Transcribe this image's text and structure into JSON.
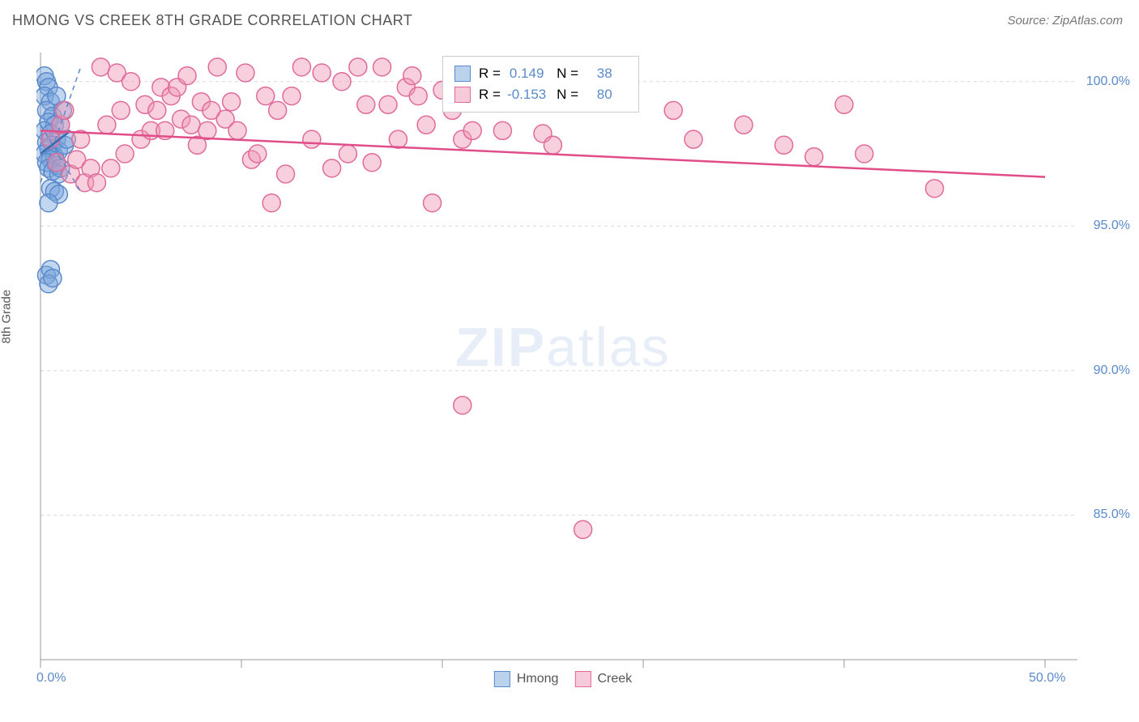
{
  "title": "HMONG VS CREEK 8TH GRADE CORRELATION CHART",
  "source": "Source: ZipAtlas.com",
  "watermark_bold": "ZIP",
  "watermark_light": "atlas",
  "y_axis_label": "8th Grade",
  "chart": {
    "type": "scatter",
    "xlim": [
      0,
      50
    ],
    "ylim": [
      80,
      101
    ],
    "x_ticks": [
      0,
      10,
      20,
      30,
      40,
      50
    ],
    "y_ticks": [
      85,
      90,
      95,
      100
    ],
    "y_tick_labels": [
      "85.0%",
      "90.0%",
      "95.0%",
      "100.0%"
    ],
    "x_tick_labels_shown": [
      "0.0%",
      "50.0%"
    ],
    "grid_color": "#d8d8d8",
    "axis_line_color": "#999999",
    "background_color": "#ffffff",
    "marker_radius": 11,
    "marker_stroke_width": 1.5,
    "trend_line_width": 2.5,
    "trend_dash_width": 1.5
  },
  "series": [
    {
      "name": "Hmong",
      "fill_color": "rgba(120,165,220,0.45)",
      "stroke_color": "#5a8acb",
      "trend_color": "#3a6aab",
      "R": "0.149",
      "N": "38",
      "trend": {
        "x1": 0,
        "y1": 97.5,
        "x2": 1.5,
        "y2": 98.3
      },
      "dashed_ci": [
        {
          "x1": 0,
          "y1": 96.5,
          "x2": 2,
          "y2": 100.5
        },
        {
          "x1": 0,
          "y1": 98.5,
          "x2": 2,
          "y2": 96.2
        }
      ],
      "points": [
        [
          0.2,
          100.2
        ],
        [
          0.3,
          100.0
        ],
        [
          0.4,
          99.8
        ],
        [
          0.2,
          99.5
        ],
        [
          0.5,
          99.3
        ],
        [
          0.3,
          99.0
        ],
        [
          0.6,
          98.8
        ],
        [
          0.4,
          98.6
        ],
        [
          0.7,
          98.5
        ],
        [
          0.2,
          98.3
        ],
        [
          0.5,
          98.2
        ],
        [
          0.8,
          98.0
        ],
        [
          0.3,
          97.9
        ],
        [
          0.6,
          97.8
        ],
        [
          0.4,
          97.7
        ],
        [
          0.9,
          97.6
        ],
        [
          0.2,
          97.5
        ],
        [
          0.7,
          97.4
        ],
        [
          0.5,
          97.3
        ],
        [
          0.3,
          97.2
        ],
        [
          0.8,
          97.1
        ],
        [
          0.4,
          97.0
        ],
        [
          0.6,
          96.9
        ],
        [
          0.9,
          96.8
        ],
        [
          1.1,
          99.0
        ],
        [
          1.2,
          97.8
        ],
        [
          0.5,
          96.3
        ],
        [
          0.7,
          96.2
        ],
        [
          0.9,
          96.1
        ],
        [
          0.4,
          95.8
        ],
        [
          1.0,
          98.5
        ],
        [
          1.3,
          98.0
        ],
        [
          0.3,
          93.3
        ],
        [
          0.5,
          93.5
        ],
        [
          0.4,
          93.0
        ],
        [
          0.6,
          93.2
        ],
        [
          0.8,
          99.5
        ],
        [
          1.0,
          97.0
        ]
      ]
    },
    {
      "name": "Creek",
      "fill_color": "rgba(240,150,180,0.45)",
      "stroke_color": "#e06a9a",
      "trend_color": "#e04d88",
      "R": "-0.153",
      "N": "80",
      "trend": {
        "x1": 0,
        "y1": 98.3,
        "x2": 50,
        "y2": 96.7
      },
      "dashed_ci": [],
      "points": [
        [
          0.5,
          98.0
        ],
        [
          0.8,
          97.2
        ],
        [
          1.0,
          98.5
        ],
        [
          1.2,
          99.0
        ],
        [
          1.5,
          96.8
        ],
        [
          1.8,
          97.3
        ],
        [
          2.0,
          98.0
        ],
        [
          2.2,
          96.5
        ],
        [
          2.5,
          97.0
        ],
        [
          2.8,
          96.5
        ],
        [
          3.0,
          100.5
        ],
        [
          3.3,
          98.5
        ],
        [
          3.8,
          100.3
        ],
        [
          4.0,
          99.0
        ],
        [
          4.2,
          97.5
        ],
        [
          4.5,
          100.0
        ],
        [
          5.0,
          98.0
        ],
        [
          5.2,
          99.2
        ],
        [
          5.5,
          98.3
        ],
        [
          5.8,
          99.0
        ],
        [
          6.0,
          99.8
        ],
        [
          6.2,
          98.3
        ],
        [
          6.5,
          99.5
        ],
        [
          6.8,
          99.8
        ],
        [
          7.0,
          98.7
        ],
        [
          7.3,
          100.2
        ],
        [
          7.5,
          98.5
        ],
        [
          7.8,
          97.8
        ],
        [
          8.0,
          99.3
        ],
        [
          8.3,
          98.3
        ],
        [
          8.5,
          99.0
        ],
        [
          8.8,
          100.5
        ],
        [
          9.2,
          98.7
        ],
        [
          9.5,
          99.3
        ],
        [
          9.8,
          98.3
        ],
        [
          10.2,
          100.3
        ],
        [
          10.5,
          97.3
        ],
        [
          10.8,
          97.5
        ],
        [
          11.2,
          99.5
        ],
        [
          11.5,
          95.8
        ],
        [
          11.8,
          99.0
        ],
        [
          12.2,
          96.8
        ],
        [
          12.5,
          99.5
        ],
        [
          13.0,
          100.5
        ],
        [
          13.5,
          98.0
        ],
        [
          14.0,
          100.3
        ],
        [
          14.5,
          97.0
        ],
        [
          15.0,
          100.0
        ],
        [
          15.3,
          97.5
        ],
        [
          15.8,
          100.5
        ],
        [
          16.2,
          99.2
        ],
        [
          16.5,
          97.2
        ],
        [
          17.0,
          100.5
        ],
        [
          17.3,
          99.2
        ],
        [
          17.8,
          98.0
        ],
        [
          18.2,
          99.8
        ],
        [
          18.5,
          100.2
        ],
        [
          18.8,
          99.5
        ],
        [
          19.2,
          98.5
        ],
        [
          19.5,
          95.8
        ],
        [
          20.0,
          99.7
        ],
        [
          20.5,
          99.0
        ],
        [
          21.0,
          98.0
        ],
        [
          21.5,
          98.3
        ],
        [
          22.3,
          99.3
        ],
        [
          23.0,
          98.3
        ],
        [
          23.5,
          99.8
        ],
        [
          25.0,
          98.2
        ],
        [
          25.5,
          97.8
        ],
        [
          27.0,
          84.5
        ],
        [
          31.5,
          99.0
        ],
        [
          32.5,
          98.0
        ],
        [
          35.0,
          98.5
        ],
        [
          37.0,
          97.8
        ],
        [
          38.5,
          97.4
        ],
        [
          41.0,
          97.5
        ],
        [
          40.0,
          99.2
        ],
        [
          44.5,
          96.3
        ],
        [
          21.0,
          88.8
        ],
        [
          3.5,
          97.0
        ]
      ]
    }
  ],
  "legend_bottom": [
    {
      "label": "Hmong",
      "swatch": "blue"
    },
    {
      "label": "Creek",
      "swatch": "pink"
    }
  ],
  "stats_labels": {
    "R": "R =",
    "N": "N ="
  }
}
